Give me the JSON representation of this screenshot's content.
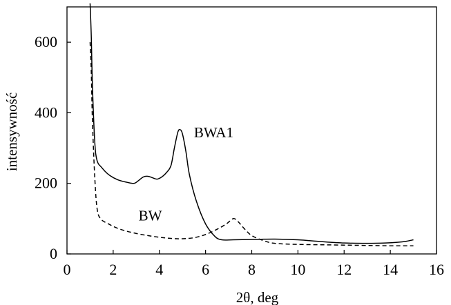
{
  "chart_data": {
    "type": "line",
    "xlabel": "2θ, deg",
    "ylabel": "intensywność",
    "xlim": [
      0,
      16
    ],
    "ylim": [
      0,
      700
    ],
    "x_ticks": [
      0,
      2,
      4,
      6,
      8,
      10,
      12,
      14,
      16
    ],
    "y_ticks": [
      0,
      200,
      400,
      600
    ],
    "x_tick_labels": [
      "0",
      "2",
      "4",
      "6",
      "8",
      "10",
      "12",
      "14",
      "16"
    ],
    "y_tick_labels": [
      "0",
      "200",
      "400",
      "600"
    ],
    "grid": false,
    "series": [
      {
        "name": "BWA1",
        "style": "solid",
        "color": "#000000",
        "points": [
          [
            1.0,
            710
          ],
          [
            1.05,
            620
          ],
          [
            1.1,
            480
          ],
          [
            1.2,
            320
          ],
          [
            1.3,
            265
          ],
          [
            1.5,
            245
          ],
          [
            1.8,
            225
          ],
          [
            2.2,
            210
          ],
          [
            2.6,
            203
          ],
          [
            2.9,
            200
          ],
          [
            3.1,
            208
          ],
          [
            3.3,
            218
          ],
          [
            3.5,
            220
          ],
          [
            3.7,
            216
          ],
          [
            3.9,
            212
          ],
          [
            4.1,
            218
          ],
          [
            4.3,
            230
          ],
          [
            4.5,
            250
          ],
          [
            4.65,
            300
          ],
          [
            4.8,
            345
          ],
          [
            4.9,
            352
          ],
          [
            5.0,
            340
          ],
          [
            5.15,
            290
          ],
          [
            5.3,
            225
          ],
          [
            5.6,
            150
          ],
          [
            6.0,
            85
          ],
          [
            6.4,
            50
          ],
          [
            6.7,
            40
          ],
          [
            7.2,
            40
          ],
          [
            8.0,
            41
          ],
          [
            9.0,
            42
          ],
          [
            10.0,
            40
          ],
          [
            11.0,
            35
          ],
          [
            12.0,
            31
          ],
          [
            13.0,
            30
          ],
          [
            13.8,
            31
          ],
          [
            14.3,
            33
          ],
          [
            14.7,
            36
          ],
          [
            15.0,
            40
          ]
        ]
      },
      {
        "name": "BW",
        "style": "dashed",
        "color": "#000000",
        "points": [
          [
            1.0,
            600
          ],
          [
            1.05,
            520
          ],
          [
            1.1,
            380
          ],
          [
            1.2,
            220
          ],
          [
            1.3,
            130
          ],
          [
            1.45,
            100
          ],
          [
            1.8,
            85
          ],
          [
            2.3,
            70
          ],
          [
            3.0,
            58
          ],
          [
            3.8,
            49
          ],
          [
            4.5,
            44
          ],
          [
            5.0,
            43
          ],
          [
            5.5,
            46
          ],
          [
            6.0,
            55
          ],
          [
            6.5,
            70
          ],
          [
            6.9,
            85
          ],
          [
            7.2,
            100
          ],
          [
            7.4,
            92
          ],
          [
            7.7,
            70
          ],
          [
            8.0,
            52
          ],
          [
            8.5,
            38
          ],
          [
            9.0,
            30
          ],
          [
            10.0,
            27
          ],
          [
            11.0,
            26
          ],
          [
            12.0,
            25
          ],
          [
            13.0,
            24
          ],
          [
            14.0,
            23
          ],
          [
            15.0,
            23
          ]
        ]
      }
    ],
    "annotations": [
      {
        "text": "BWA1",
        "x": 5.5,
        "y": 330
      },
      {
        "text": "BW",
        "x": 3.1,
        "y": 95
      }
    ]
  }
}
